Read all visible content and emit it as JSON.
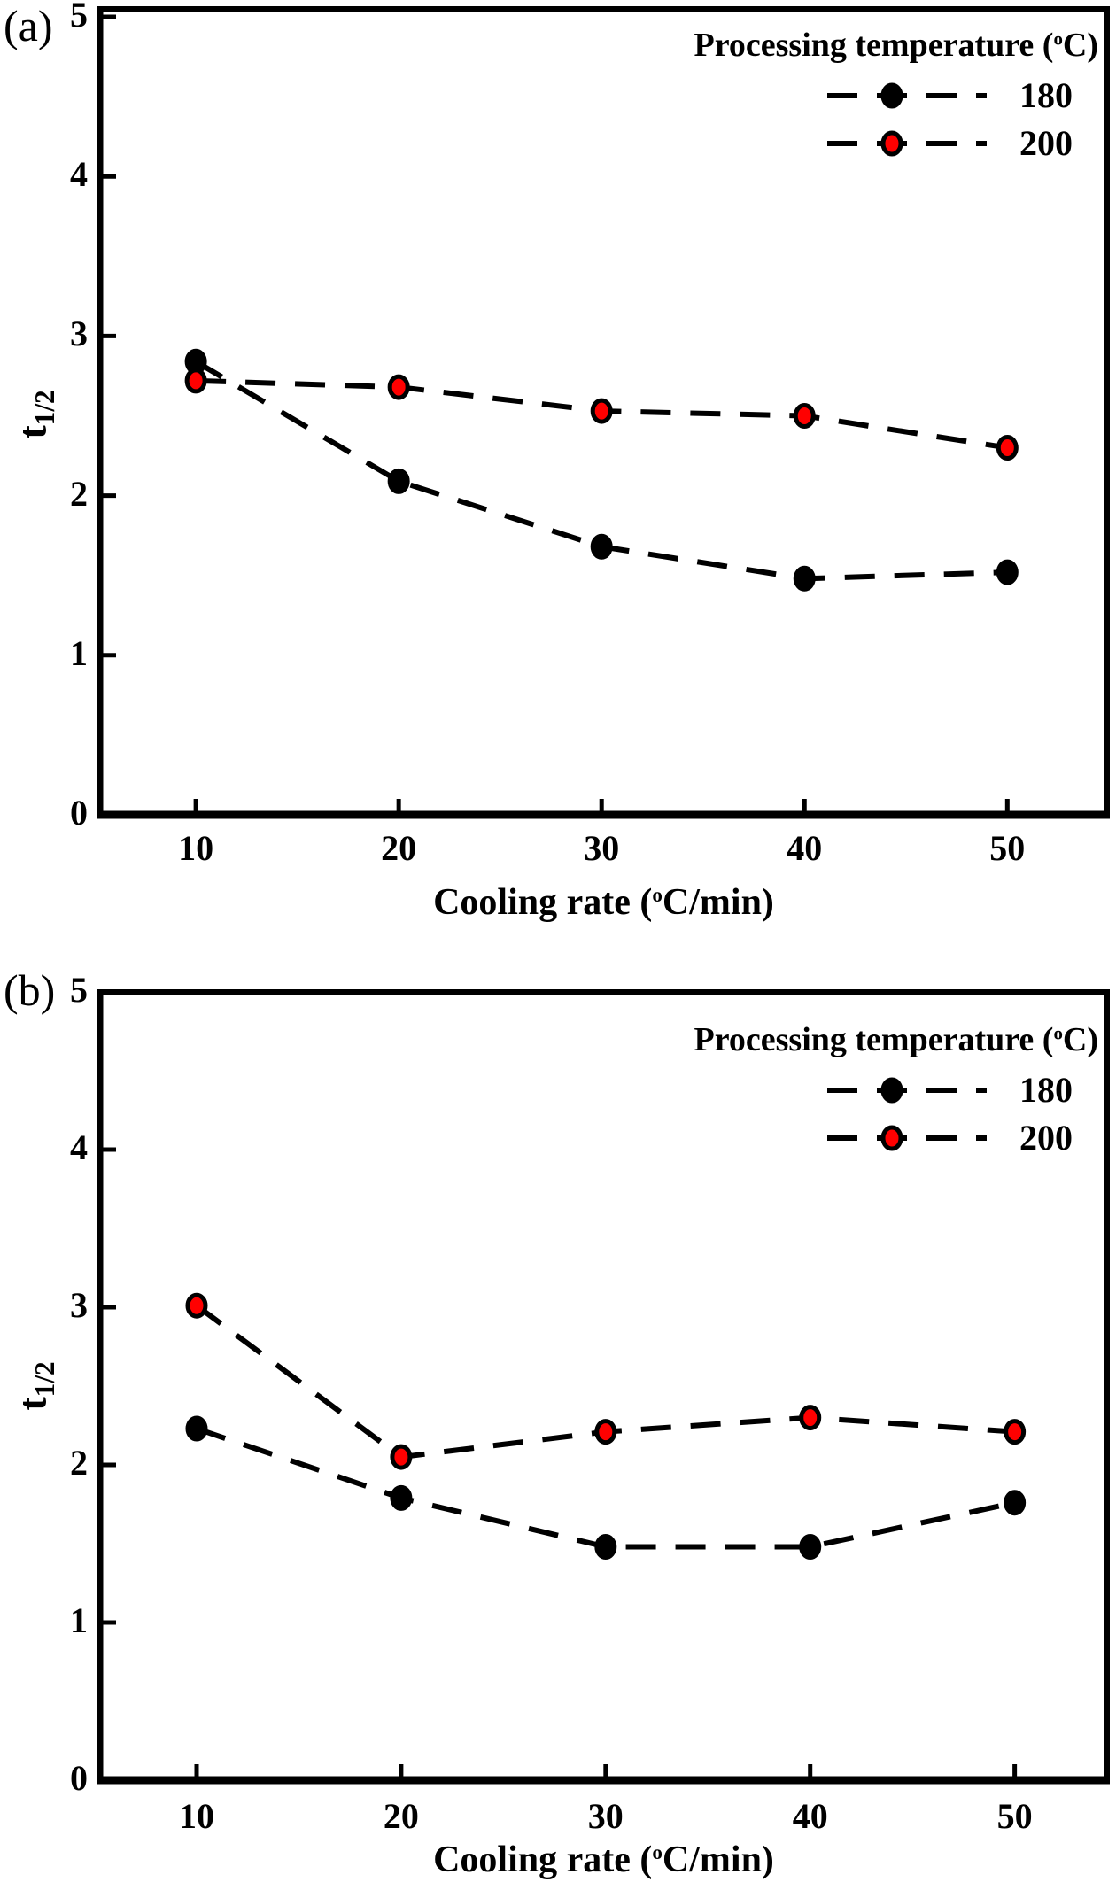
{
  "figure": {
    "background": "#ffffff",
    "text_color": "#000000"
  },
  "colors": {
    "series_180_marker": "#000000",
    "series_200_marker": "#ff0000",
    "line": "#000000"
  },
  "chart_data": [
    {
      "type": "line",
      "panel_label": "(a)",
      "x_label": {
        "pre": "Cooling rate (",
        "sup": "o",
        "post": "C/min)"
      },
      "y_label": {
        "base": "t",
        "sub": "1/2"
      },
      "x": [
        10,
        20,
        30,
        40,
        50
      ],
      "x_ticks": [
        10,
        20,
        30,
        40,
        50
      ],
      "y_ticks": [
        0,
        1,
        2,
        3,
        4,
        5
      ],
      "x_range": [
        5.28,
        54.92
      ],
      "y_range": [
        0,
        5.05
      ],
      "grid": false,
      "legend": {
        "position": "top-right",
        "title": {
          "pre": "Processing temperature (",
          "sup": "o",
          "post": "C)"
        }
      },
      "series": [
        {
          "name": "180",
          "marker_color": "#000000",
          "line_color": "#000000",
          "line_style": "dashed",
          "values": [
            2.84,
            2.09,
            1.68,
            1.48,
            1.52
          ]
        },
        {
          "name": "200",
          "marker_color": "#ff0000",
          "line_color": "#000000",
          "line_style": "dashed",
          "values": [
            2.72,
            2.68,
            2.53,
            2.5,
            2.3
          ]
        }
      ]
    },
    {
      "type": "line",
      "panel_label": "(b)",
      "x_label": {
        "pre": "Cooling rate (",
        "sup": "o",
        "post": "C/min)"
      },
      "y_label": {
        "base": "t",
        "sub": "1/2"
      },
      "x": [
        10,
        20,
        30,
        40,
        50
      ],
      "x_ticks": [
        10,
        20,
        30,
        40,
        50
      ],
      "y_ticks": [
        0,
        1,
        2,
        3,
        4,
        5
      ],
      "x_range": [
        5.28,
        54.52
      ],
      "y_range": [
        0,
        5.0
      ],
      "grid": false,
      "legend": {
        "position": "top-right",
        "title": {
          "pre": "Processing temperature (",
          "sup": "o",
          "post": "C)"
        }
      },
      "series": [
        {
          "name": "180",
          "marker_color": "#000000",
          "line_color": "#000000",
          "line_style": "dashed",
          "values": [
            2.23,
            1.79,
            1.48,
            1.48,
            1.76
          ]
        },
        {
          "name": "200",
          "marker_color": "#ff0000",
          "line_color": "#000000",
          "line_style": "dashed",
          "values": [
            3.01,
            2.05,
            2.21,
            2.3,
            2.21
          ]
        }
      ]
    }
  ]
}
